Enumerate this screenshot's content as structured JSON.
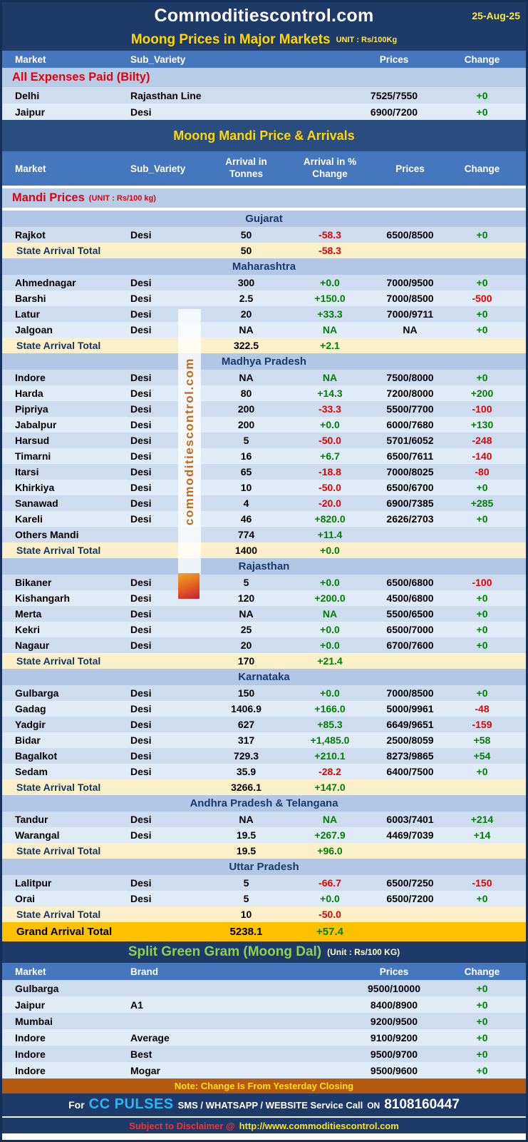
{
  "page": {
    "title": "Commoditiescontrol.com",
    "date": "25-Aug-25"
  },
  "major_markets": {
    "title": "Moong Prices in Major Markets",
    "unit": "UNIT : Rs/100Kg",
    "columns": {
      "market": "Market",
      "variety": "Sub_Variety",
      "prices": "Prices",
      "change": "Change"
    },
    "group_label": "All Expenses Paid (Bilty)",
    "rows": [
      {
        "market": "Delhi",
        "variety": "Rajasthan Line",
        "prices": "7525/7550",
        "change": "+0"
      },
      {
        "market": "Jaipur",
        "variety": "Desi",
        "prices": "6900/7200",
        "change": "+0"
      }
    ]
  },
  "mandi": {
    "title": "Moong Mandi Price & Arrivals",
    "columns": {
      "market": "Market",
      "variety": "Sub_Variety",
      "arrival": "Arrival in Tonnes",
      "arrival_pct": "Arrival in % Change",
      "prices": "Prices",
      "change": "Change"
    },
    "group_label": "Mandi Prices",
    "group_unit": "(UNIT : Rs/100 kg)",
    "states": [
      {
        "name": "Gujarat",
        "rows": [
          {
            "market": "Rajkot",
            "variety": "Desi",
            "arrival": "50",
            "arrival_pct": "-58.3",
            "prices": "6500/8500",
            "change": "+0"
          }
        ],
        "total": {
          "label": "State Arrival Total",
          "arrival": "50",
          "arrival_pct": "-58.3"
        }
      },
      {
        "name": "Maharashtra",
        "rows": [
          {
            "market": "Ahmednagar",
            "variety": "Desi",
            "arrival": "300",
            "arrival_pct": "+0.0",
            "prices": "7000/9500",
            "change": "+0"
          },
          {
            "market": "Barshi",
            "variety": "Desi",
            "arrival": "2.5",
            "arrival_pct": "+150.0",
            "prices": "7000/8500",
            "change": "-500"
          },
          {
            "market": "Latur",
            "variety": "Desi",
            "arrival": "20",
            "arrival_pct": "+33.3",
            "prices": "7000/9711",
            "change": "+0"
          },
          {
            "market": "Jalgoan",
            "variety": "Desi",
            "arrival": "NA",
            "arrival_pct": "NA",
            "prices": "NA",
            "change": "+0"
          }
        ],
        "total": {
          "label": "State Arrival Total",
          "arrival": "322.5",
          "arrival_pct": "+2.1"
        }
      },
      {
        "name": "Madhya Pradesh",
        "rows": [
          {
            "market": "Indore",
            "variety": "Desi",
            "arrival": "NA",
            "arrival_pct": "NA",
            "prices": "7500/8000",
            "change": "+0"
          },
          {
            "market": "Harda",
            "variety": "Desi",
            "arrival": "80",
            "arrival_pct": "+14.3",
            "prices": "7200/8000",
            "change": "+200"
          },
          {
            "market": "Pipriya",
            "variety": "Desi",
            "arrival": "200",
            "arrival_pct": "-33.3",
            "prices": "5500/7700",
            "change": "-100"
          },
          {
            "market": "Jabalpur",
            "variety": "Desi",
            "arrival": "200",
            "arrival_pct": "+0.0",
            "prices": "6000/7680",
            "change": "+130"
          },
          {
            "market": "Harsud",
            "variety": "Desi",
            "arrival": "5",
            "arrival_pct": "-50.0",
            "prices": "5701/6052",
            "change": "-248"
          },
          {
            "market": "Timarni",
            "variety": "Desi",
            "arrival": "16",
            "arrival_pct": "+6.7",
            "prices": "6500/7611",
            "change": "-140"
          },
          {
            "market": "Itarsi",
            "variety": "Desi",
            "arrival": "65",
            "arrival_pct": "-18.8",
            "prices": "7000/8025",
            "change": "-80"
          },
          {
            "market": "Khirkiya",
            "variety": "Desi",
            "arrival": "10",
            "arrival_pct": "-50.0",
            "prices": "6500/6700",
            "change": "+0"
          },
          {
            "market": "Sanawad",
            "variety": "Desi",
            "arrival": "4",
            "arrival_pct": "-20.0",
            "prices": "6900/7385",
            "change": "+285"
          },
          {
            "market": "Kareli",
            "variety": "Desi",
            "arrival": "46",
            "arrival_pct": "+820.0",
            "prices": "2626/2703",
            "change": "+0"
          },
          {
            "market": "Others Mandi",
            "variety": "",
            "arrival": "774",
            "arrival_pct": "+11.4",
            "prices": "",
            "change": ""
          }
        ],
        "total": {
          "label": "State Arrival Total",
          "arrival": "1400",
          "arrival_pct": "+0.0"
        }
      },
      {
        "name": "Rajasthan",
        "rows": [
          {
            "market": "Bikaner",
            "variety": "Desi",
            "arrival": "5",
            "arrival_pct": "+0.0",
            "prices": "6500/6800",
            "change": "-100"
          },
          {
            "market": "Kishangarh",
            "variety": "Desi",
            "arrival": "120",
            "arrival_pct": "+200.0",
            "prices": "4500/6800",
            "change": "+0"
          },
          {
            "market": "Merta",
            "variety": "Desi",
            "arrival": "NA",
            "arrival_pct": "NA",
            "prices": "5500/6500",
            "change": "+0"
          },
          {
            "market": "Kekri",
            "variety": "Desi",
            "arrival": "25",
            "arrival_pct": "+0.0",
            "prices": "6500/7000",
            "change": "+0"
          },
          {
            "market": "Nagaur",
            "variety": "Desi",
            "arrival": "20",
            "arrival_pct": "+0.0",
            "prices": "6700/7600",
            "change": "+0"
          }
        ],
        "total": {
          "label": "State Arrival Total",
          "arrival": "170",
          "arrival_pct": "+21.4"
        }
      },
      {
        "name": "Karnataka",
        "rows": [
          {
            "market": "Gulbarga",
            "variety": "Desi",
            "arrival": "150",
            "arrival_pct": "+0.0",
            "prices": "7000/8500",
            "change": "+0"
          },
          {
            "market": "Gadag",
            "variety": "Desi",
            "arrival": "1406.9",
            "arrival_pct": "+166.0",
            "prices": "5000/9961",
            "change": "-48"
          },
          {
            "market": "Yadgir",
            "variety": "Desi",
            "arrival": "627",
            "arrival_pct": "+85.3",
            "prices": "6649/9651",
            "change": "-159"
          },
          {
            "market": "Bidar",
            "variety": "Desi",
            "arrival": "317",
            "arrival_pct": "+1,485.0",
            "prices": "2500/8059",
            "change": "+58"
          },
          {
            "market": "Bagalkot",
            "variety": "Desi",
            "arrival": "729.3",
            "arrival_pct": "+210.1",
            "prices": "8273/9865",
            "change": "+54"
          },
          {
            "market": "Sedam",
            "variety": "Desi",
            "arrival": "35.9",
            "arrival_pct": "-28.2",
            "prices": "6400/7500",
            "change": "+0"
          }
        ],
        "total": {
          "label": "State Arrival Total",
          "arrival": "3266.1",
          "arrival_pct": "+147.0"
        }
      },
      {
        "name": "Andhra Pradesh & Telangana",
        "rows": [
          {
            "market": "Tandur",
            "variety": "Desi",
            "arrival": "NA",
            "arrival_pct": "NA",
            "prices": "6003/7401",
            "change": "+214"
          },
          {
            "market": "Warangal",
            "variety": "Desi",
            "arrival": "19.5",
            "arrival_pct": "+267.9",
            "prices": "4469/7039",
            "change": "+14"
          }
        ],
        "total": {
          "label": "State Arrival Total",
          "arrival": "19.5",
          "arrival_pct": "+96.0"
        }
      },
      {
        "name": "Uttar Pradesh",
        "rows": [
          {
            "market": "Lalitpur",
            "variety": "Desi",
            "arrival": "5",
            "arrival_pct": "-66.7",
            "prices": "6500/7250",
            "change": "-150"
          },
          {
            "market": "Orai",
            "variety": "Desi",
            "arrival": "5",
            "arrival_pct": "+0.0",
            "prices": "6500/7200",
            "change": "+0"
          }
        ],
        "total": {
          "label": "State Arrival Total",
          "arrival": "10",
          "arrival_pct": "-50.0"
        }
      }
    ],
    "grand_total": {
      "label": "Grand Arrival Total",
      "arrival": "5238.1",
      "arrival_pct": "+57.4"
    }
  },
  "moong_dal": {
    "title": "Split Green Gram (Moong Dal)",
    "unit": "(Unit : Rs/100 KG)",
    "columns": {
      "market": "Market",
      "brand": "Brand",
      "prices": "Prices",
      "change": "Change"
    },
    "rows": [
      {
        "market": "Gulbarga",
        "brand": "",
        "prices": "9500/10000",
        "change": "+0"
      },
      {
        "market": "Jaipur",
        "brand": "A1",
        "prices": "8400/8900",
        "change": "+0"
      },
      {
        "market": "Mumbai",
        "brand": "",
        "prices": "9200/9500",
        "change": "+0"
      },
      {
        "market": "Indore",
        "brand": "Average",
        "prices": "9100/9200",
        "change": "+0"
      },
      {
        "market": "Indore",
        "brand": "Best",
        "prices": "9500/9700",
        "change": "+0"
      },
      {
        "market": "Indore",
        "brand": "Mogar",
        "prices": "9500/9600",
        "change": "+0"
      }
    ]
  },
  "footer": {
    "note": "Note: Change Is From Yesterday Closing",
    "service_prefix": "For",
    "service_brand": "CC PULSES",
    "service_text": "SMS / WHATSAPP / WEBSITE Service Call",
    "service_on": "ON",
    "service_phone": "8108160447",
    "disclaimer_prefix": "Subject to Disclaimer @",
    "disclaimer_url": "http://www.commoditiescontrol.com"
  },
  "watermark": {
    "text": "commoditiescontrol.com"
  },
  "colors": {
    "positive": "#008000",
    "negative": "#E60000",
    "header_navy": "#1E3A68",
    "column_header_blue": "#4577BE",
    "state_header_blue": "#B2C7E6",
    "total_cream": "#FCF0CB",
    "grand_gold": "#FFC000",
    "title_yellow": "#FFD800",
    "dal_title_green": "#8FD14F",
    "brand_cyan": "#2EB6F0",
    "note_orange": "#B55A11"
  }
}
